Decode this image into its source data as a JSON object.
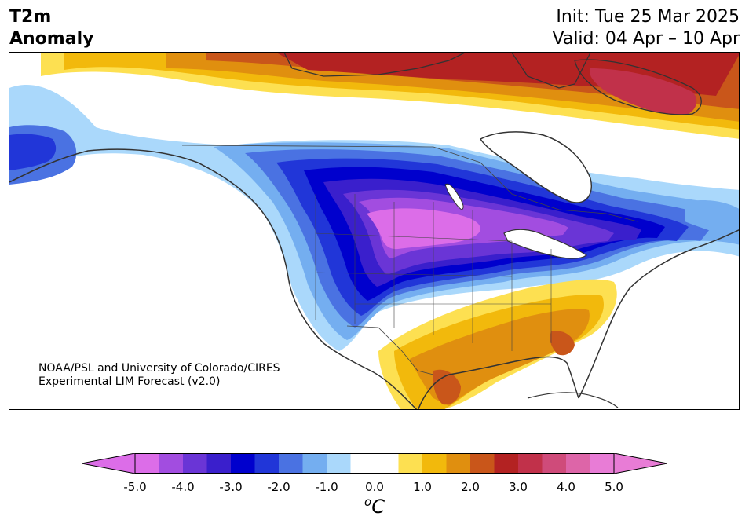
{
  "header": {
    "title_line1": "T2m",
    "title_line2": "Anomaly",
    "init": "Init: Tue 25 Mar 2025",
    "valid": "Valid: 04 Apr – 10 Apr"
  },
  "credit": {
    "line1": "NOAA/PSL and University of Colorado/CIRES",
    "line2": "Experimental LIM Forecast (v2.0)"
  },
  "colorbar": {
    "unit_base": "C",
    "unit_sup": "o",
    "ticks": [
      "-5.0",
      "-4.0",
      "-3.0",
      "-2.0",
      "-1.0",
      "0.0",
      "1.0",
      "2.0",
      "3.0",
      "4.0",
      "5.0"
    ],
    "colors": [
      "#dc6de8",
      "#a24de0",
      "#6a35d6",
      "#3a1fcc",
      "#0000cd",
      "#2136d8",
      "#4a72e2",
      "#74aef0",
      "#aad8fb",
      "#ffffff",
      "#ffffff",
      "#fde051",
      "#f2b90c",
      "#e08f0f",
      "#c9561a",
      "#b32222",
      "#c1314a",
      "#cf4b7a",
      "#dd65a8",
      "#e87cd6"
    ],
    "under_color": "#dc6de8",
    "over_color": "#e87cd6"
  },
  "map": {
    "background": "#ffffff",
    "coast_color": "#333333",
    "border_color": "#444444"
  }
}
